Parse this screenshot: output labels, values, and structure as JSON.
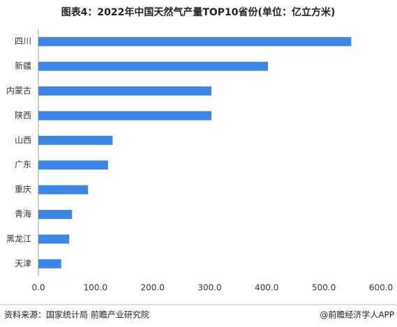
{
  "chart_data": {
    "type": "hbar",
    "title": "图表4：2022年中国天然气产量TOP10省份(单位：亿立方米)",
    "categories": [
      "四川",
      "新疆",
      "内蒙古",
      "陕西",
      "山西",
      "广东",
      "重庆",
      "青海",
      "黑龙江",
      "天津"
    ],
    "values": [
      548,
      402,
      303,
      303,
      130,
      122,
      87,
      59,
      54,
      40
    ],
    "color": "#3b86e6",
    "xlim": [
      0,
      600
    ],
    "xticks": [
      {
        "value": 0,
        "label": "0.0"
      },
      {
        "value": 100,
        "label": "100.0"
      },
      {
        "value": 200,
        "label": "200.0"
      },
      {
        "value": 300,
        "label": "300.0"
      },
      {
        "value": 400,
        "label": "400.0"
      },
      {
        "value": 500,
        "label": "500.0"
      },
      {
        "value": 600,
        "label": "600.0"
      }
    ],
    "source": "资料来源：国家统计局 前瞻产业研究院",
    "credit": "@前瞻经济学人APP"
  }
}
